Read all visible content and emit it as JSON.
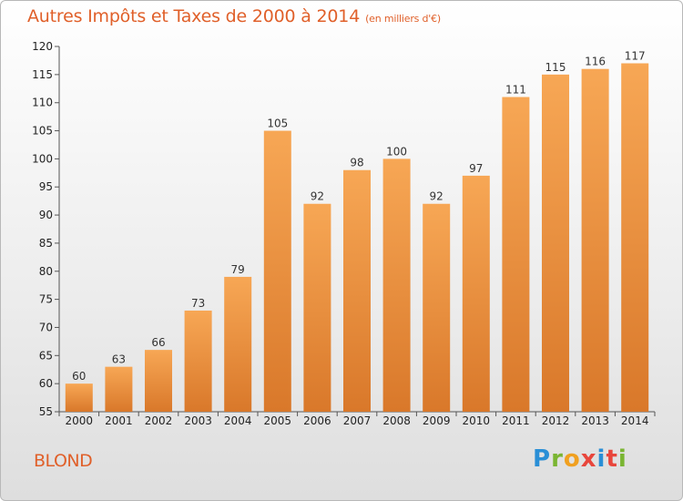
{
  "title": {
    "main": "Autres Impôts et Taxes de 2000 à 2014",
    "unit": "(en milliers d'€)"
  },
  "town": "BLOND",
  "logo": {
    "letters": [
      "P",
      "r",
      "o",
      "x",
      "i",
      "t",
      "i"
    ],
    "colors": [
      "#2a8fd6",
      "#7ab532",
      "#f0a020",
      "#e8463c",
      "#2a8fd6",
      "#e8463c",
      "#7ab532"
    ]
  },
  "colors": {
    "bar_top": "#f7a755",
    "bar_bottom": "#d9782a",
    "text_accent": "#e0602a"
  },
  "chart_data": {
    "type": "bar",
    "categories": [
      "2000",
      "2001",
      "2002",
      "2003",
      "2004",
      "2005",
      "2006",
      "2007",
      "2008",
      "2009",
      "2010",
      "2011",
      "2012",
      "2013",
      "2014"
    ],
    "values": [
      60,
      63,
      66,
      73,
      79,
      105,
      92,
      98,
      100,
      92,
      97,
      111,
      115,
      116,
      117
    ],
    "ylim": [
      55,
      120
    ],
    "yticks": [
      55,
      60,
      65,
      70,
      75,
      80,
      85,
      90,
      95,
      100,
      105,
      110,
      115,
      120
    ],
    "grid": false,
    "data_labels": true
  }
}
